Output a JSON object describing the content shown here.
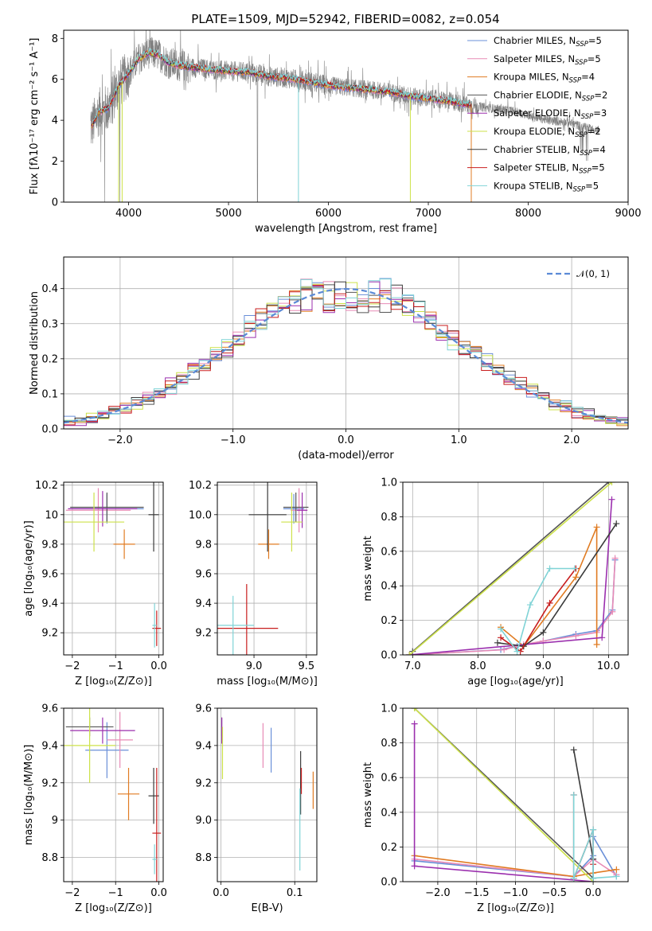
{
  "title": "PLATE=1509, MJD=52942, FIBERID=0082, z=0.054",
  "colors": {
    "chabrier_miles": "#6a8fd8",
    "salpeter_miles": "#e88bb6",
    "kroupa_miles": "#e07b22",
    "chabrier_elodie": "#555555",
    "salpeter_elodie": "#9b2fae",
    "kroupa_elodie": "#cde24a",
    "chabrier_stelib": "#3a3a3a",
    "salpeter_stelib": "#c81e1e",
    "kroupa_stelib": "#7fd3d6",
    "data_gray": "#808080",
    "normal_curve": "#5b8ad6"
  },
  "legend_spectrum": [
    {
      "text": "Chabrier MILES, N",
      "sub": "SSP",
      "tail": "=5",
      "color": "#6a8fd8"
    },
    {
      "text": "Salpeter MILES, N",
      "sub": "SSP",
      "tail": "=5",
      "color": "#e88bb6"
    },
    {
      "text": "Kroupa MILES, N",
      "sub": "SSP",
      "tail": "=4",
      "color": "#e07b22"
    },
    {
      "text": "Chabrier ELODIE, N",
      "sub": "SSP",
      "tail": "=2",
      "color": "#555555"
    },
    {
      "text": "Salpeter ELODIE, N",
      "sub": "SSP",
      "tail": "=3",
      "color": "#9b2fae"
    },
    {
      "text": "Kroupa ELODIE, N",
      "sub": "SSP",
      "tail": "=2",
      "color": "#cde24a"
    },
    {
      "text": "Chabrier STELIB, N",
      "sub": "SSP",
      "tail": "=4",
      "color": "#3a3a3a"
    },
    {
      "text": "Salpeter STELIB, N",
      "sub": "SSP",
      "tail": "=5",
      "color": "#c81e1e"
    },
    {
      "text": "Kroupa STELIB, N",
      "sub": "SSP",
      "tail": "=5",
      "color": "#7fd3d6"
    }
  ],
  "legend_hist": {
    "label": "𝒩(0, 1)"
  },
  "chart_data": [
    {
      "id": "spectrum",
      "type": "line",
      "xlabel": "wavelength [Angstrom, rest frame]",
      "ylabel": "Flux [fλ10⁻¹⁷ erg cm⁻² s⁻¹ A⁻¹]",
      "xlim": [
        3350,
        9000
      ],
      "ylim": [
        0,
        8.4
      ],
      "xticks": [
        4000,
        5000,
        6000,
        7000,
        8000,
        9000
      ],
      "yticks": [
        0,
        2,
        4,
        6,
        8
      ],
      "data_wavelength": [
        3620,
        3700,
        3800,
        3900,
        4000,
        4100,
        4200,
        4300,
        4400,
        4600,
        4800,
        5000,
        5200,
        5400,
        5600,
        5800,
        6000,
        6200,
        6400,
        6600,
        6800,
        7000,
        7200,
        7400,
        7600,
        7800,
        8000,
        8200,
        8400,
        8600,
        8700
      ],
      "model_flux": [
        3.6,
        4.4,
        4.6,
        5.7,
        6.3,
        7.0,
        7.3,
        7.2,
        6.8,
        6.6,
        6.5,
        6.4,
        6.35,
        6.15,
        6.05,
        5.9,
        5.7,
        5.6,
        5.5,
        5.4,
        5.2,
        5.05,
        4.95,
        4.75,
        4.6,
        4.5,
        4.25,
        4.0,
        3.9,
        3.6,
        3.5
      ],
      "model_end": 7430
    },
    {
      "id": "residual_hist",
      "type": "line",
      "xlabel": "(data-model)/error",
      "ylabel": "Normed distribution",
      "xlim": [
        -2.5,
        2.5
      ],
      "ylim": [
        0,
        0.49
      ],
      "xticks": [
        -2,
        -1,
        0,
        1,
        2
      ],
      "yticks": [
        0.0,
        0.1,
        0.2,
        0.3,
        0.4
      ],
      "bin_width": 0.1,
      "series": [
        {
          "name": "𝒩(0, 1)",
          "type": "normal_pdf",
          "mu": 0,
          "sigma": 1
        }
      ]
    },
    {
      "id": "age_vs_Z",
      "type": "scatter",
      "xlabel": "Z [log₁₀(Z/Z⊙)]",
      "ylabel": "age  [log₁₀(age/yr)]",
      "xlim": [
        -2.2,
        0.1
      ],
      "ylim": [
        9.05,
        10.22
      ],
      "xticks": [
        -2,
        -1,
        0
      ],
      "yticks": [
        9.2,
        9.4,
        9.6,
        9.8,
        10.0,
        10.2
      ],
      "points": [
        {
          "x": -1.2,
          "y": 10.04,
          "xerr": 0.85,
          "yerr": 0.1,
          "color": "#6a8fd8"
        },
        {
          "x": -1.4,
          "y": 10.03,
          "xerr": 0.75,
          "yerr": 0.15,
          "color": "#e88bb6"
        },
        {
          "x": -0.8,
          "y": 9.8,
          "xerr": 0.25,
          "yerr": 0.1,
          "color": "#e07b22"
        },
        {
          "x": -1.2,
          "y": 10.05,
          "xerr": 0.85,
          "yerr": 0.1,
          "color": "#555555"
        },
        {
          "x": -1.3,
          "y": 10.04,
          "xerr": 0.8,
          "yerr": 0.12,
          "color": "#9b2fae"
        },
        {
          "x": -1.5,
          "y": 9.95,
          "xerr": 0.7,
          "yerr": 0.2,
          "color": "#cde24a"
        },
        {
          "x": -0.12,
          "y": 10.0,
          "xerr": 0.12,
          "yerr": 0.25,
          "color": "#3a3a3a"
        },
        {
          "x": -0.05,
          "y": 9.23,
          "xerr": 0.1,
          "yerr": 0.12,
          "color": "#c81e1e"
        },
        {
          "x": -0.1,
          "y": 9.25,
          "xerr": 0.05,
          "yerr": 0.15,
          "color": "#7fd3d6"
        }
      ]
    },
    {
      "id": "age_vs_mass",
      "type": "scatter",
      "xlabel": "mass [log₁₀(M/M⊙)]",
      "ylabel": "",
      "xlim": [
        8.65,
        9.6
      ],
      "ylim": [
        9.05,
        10.22
      ],
      "xticks": [
        9.0,
        9.5
      ],
      "yticks": [
        9.2,
        9.4,
        9.6,
        9.8,
        10.0,
        10.2
      ],
      "points": [
        {
          "x": 9.38,
          "y": 10.04,
          "xerr": 0.1,
          "yerr": 0.1,
          "color": "#6a8fd8"
        },
        {
          "x": 9.43,
          "y": 10.03,
          "xerr": 0.08,
          "yerr": 0.15,
          "color": "#e88bb6"
        },
        {
          "x": 9.14,
          "y": 9.8,
          "xerr": 0.1,
          "yerr": 0.1,
          "color": "#e07b22"
        },
        {
          "x": 9.4,
          "y": 10.05,
          "xerr": 0.12,
          "yerr": 0.1,
          "color": "#555555"
        },
        {
          "x": 9.46,
          "y": 10.03,
          "xerr": 0.05,
          "yerr": 0.12,
          "color": "#9b2fae"
        },
        {
          "x": 9.36,
          "y": 9.95,
          "xerr": 0.1,
          "yerr": 0.2,
          "color": "#cde24a"
        },
        {
          "x": 9.13,
          "y": 10.0,
          "xerr": 0.18,
          "yerr": 0.25,
          "color": "#3a3a3a"
        },
        {
          "x": 8.93,
          "y": 9.23,
          "xerr": 0.3,
          "yerr": 0.3,
          "color": "#c81e1e"
        },
        {
          "x": 8.8,
          "y": 9.25,
          "xerr": 0.2,
          "yerr": 0.2,
          "color": "#7fd3d6"
        }
      ]
    },
    {
      "id": "massweight_vs_age",
      "type": "line",
      "xlabel": "age  [log₁₀(age/yr)]",
      "ylabel": "mass weight",
      "xlim": [
        6.85,
        10.3
      ],
      "ylim": [
        0,
        1.0
      ],
      "xticks": [
        7,
        8,
        9,
        10
      ],
      "yticks": [
        0.0,
        0.2,
        0.4,
        0.6,
        0.8,
        1.0
      ],
      "series": [
        {
          "name": "Chabrier MILES",
          "color": "#6a8fd8",
          "x": [
            6.95,
            8.35,
            8.6,
            9.0,
            9.5,
            9.82,
            10.06,
            10.1
          ],
          "y": [
            0.0,
            0.03,
            0.05,
            0.08,
            0.12,
            0.14,
            0.26,
            0.55
          ]
        },
        {
          "name": "Salpeter MILES",
          "color": "#e88bb6",
          "x": [
            6.95,
            8.4,
            8.7,
            9.0,
            9.5,
            9.82,
            10.06,
            10.1
          ],
          "y": [
            0.0,
            0.03,
            0.06,
            0.08,
            0.11,
            0.13,
            0.25,
            0.56
          ]
        },
        {
          "name": "Kroupa MILES",
          "color": "#e07b22",
          "x": [
            8.35,
            8.7,
            9.5,
            9.82,
            9.82
          ],
          "y": [
            0.16,
            0.05,
            0.45,
            0.74,
            0.06
          ]
        },
        {
          "name": "Chabrier ELODIE",
          "color": "#555555",
          "x": [
            7.0,
            10.0
          ],
          "y": [
            0.02,
            1.0
          ]
        },
        {
          "name": "Salpeter ELODIE",
          "color": "#9b2fae",
          "x": [
            6.95,
            9.9,
            10.05
          ],
          "y": [
            0.0,
            0.1,
            0.9
          ]
        },
        {
          "name": "Kroupa ELODIE",
          "color": "#cde24a",
          "x": [
            6.95,
            10.05
          ],
          "y": [
            0.0,
            1.0
          ]
        },
        {
          "name": "Chabrier STELIB",
          "color": "#3a3a3a",
          "x": [
            8.3,
            8.7,
            9.0,
            10.12
          ],
          "y": [
            0.07,
            0.05,
            0.13,
            0.76
          ]
        },
        {
          "name": "Salpeter STELIB",
          "color": "#c81e1e",
          "x": [
            8.35,
            8.65,
            9.1,
            9.5
          ],
          "y": [
            0.1,
            0.02,
            0.3,
            0.5
          ]
        },
        {
          "name": "Kroupa STELIB",
          "color": "#7fd3d6",
          "x": [
            8.35,
            8.6,
            8.8,
            9.1,
            9.48
          ],
          "y": [
            0.15,
            0.02,
            0.29,
            0.5,
            0.5
          ]
        }
      ]
    },
    {
      "id": "mass_vs_Z",
      "type": "scatter",
      "xlabel": "Z [log₁₀(Z/Z⊙)]",
      "ylabel": "mass [log₁₀(M/M⊙)]",
      "xlim": [
        -2.2,
        0.1
      ],
      "ylim": [
        8.67,
        9.6
      ],
      "xticks": [
        -2,
        -1,
        0
      ],
      "yticks": [
        8.8,
        9.0,
        9.2,
        9.4,
        9.6
      ],
      "points": [
        {
          "x": -1.2,
          "y": 9.375,
          "xerr": 0.5,
          "yerr": 0.15,
          "color": "#6a8fd8"
        },
        {
          "x": -0.9,
          "y": 9.43,
          "xerr": 0.3,
          "yerr": 0.15,
          "color": "#e88bb6"
        },
        {
          "x": -0.7,
          "y": 9.14,
          "xerr": 0.25,
          "yerr": 0.14,
          "color": "#e07b22"
        },
        {
          "x": -1.6,
          "y": 9.5,
          "xerr": 0.55,
          "yerr": 0.05,
          "color": "#555555"
        },
        {
          "x": -1.3,
          "y": 9.48,
          "xerr": 0.75,
          "yerr": 0.07,
          "color": "#9b2fae"
        },
        {
          "x": -1.6,
          "y": 9.4,
          "xerr": 0.6,
          "yerr": 0.2,
          "color": "#cde24a"
        },
        {
          "x": -0.12,
          "y": 9.13,
          "xerr": 0.12,
          "yerr": 0.15,
          "color": "#3a3a3a"
        },
        {
          "x": -0.05,
          "y": 8.93,
          "xerr": 0.1,
          "yerr": 0.35,
          "color": "#c81e1e"
        },
        {
          "x": -0.1,
          "y": 8.79,
          "xerr": 0.05,
          "yerr": 0.08,
          "color": "#7fd3d6"
        }
      ]
    },
    {
      "id": "mass_vs_ebv",
      "type": "scatter",
      "xlabel": "E(B-V)",
      "ylabel": "",
      "xlim": [
        -0.005,
        0.13
      ],
      "ylim": [
        8.67,
        9.6
      ],
      "xticks": [
        0.0,
        0.1
      ],
      "yticks": [
        8.8,
        9.0,
        9.2,
        9.4,
        9.6
      ],
      "points": [
        {
          "x": 0.068,
          "y": 9.375,
          "xerr": 0,
          "yerr": 0.12,
          "color": "#6a8fd8"
        },
        {
          "x": 0.057,
          "y": 9.4,
          "xerr": 0,
          "yerr": 0.12,
          "color": "#e88bb6"
        },
        {
          "x": 0.125,
          "y": 9.16,
          "xerr": 0,
          "yerr": 0.1,
          "color": "#e07b22"
        },
        {
          "x": 0.001,
          "y": 9.5,
          "xerr": 0,
          "yerr": 0.05,
          "color": "#555555"
        },
        {
          "x": 0.001,
          "y": 9.48,
          "xerr": 0,
          "yerr": 0.07,
          "color": "#9b2fae"
        },
        {
          "x": 0.002,
          "y": 9.36,
          "xerr": 0,
          "yerr": 0.14,
          "color": "#cde24a"
        },
        {
          "x": 0.108,
          "y": 9.2,
          "xerr": 0,
          "yerr": 0.17,
          "color": "#3a3a3a"
        },
        {
          "x": 0.109,
          "y": 9.21,
          "xerr": 0,
          "yerr": 0.07,
          "color": "#c81e1e"
        },
        {
          "x": 0.107,
          "y": 8.95,
          "xerr": 0,
          "yerr": 0.22,
          "color": "#7fd3d6"
        }
      ]
    },
    {
      "id": "massweight_vs_Z",
      "type": "line",
      "xlabel": "Z [log₁₀(Z/Z⊙)]",
      "ylabel": "mass weight",
      "xlim": [
        -2.45,
        0.45
      ],
      "ylim": [
        0,
        1.0
      ],
      "xticks": [
        -2.0,
        -1.5,
        -1.0,
        -0.5,
        0.0
      ],
      "yticks": [
        0.0,
        0.2,
        0.4,
        0.6,
        0.8,
        1.0
      ],
      "series": [
        {
          "name": "Chabrier MILES",
          "color": "#6a8fd8",
          "x": [
            -2.3,
            -0.25,
            0.0,
            0.0,
            0.3
          ],
          "y": [
            0.12,
            0.03,
            0.15,
            0.26,
            0.03
          ]
        },
        {
          "name": "Salpeter MILES",
          "color": "#e88bb6",
          "x": [
            -2.3,
            -0.25,
            0.0,
            0.3
          ],
          "y": [
            0.13,
            0.03,
            0.13,
            0.04
          ]
        },
        {
          "name": "Kroupa MILES",
          "color": "#e07b22",
          "x": [
            -2.3,
            -0.25,
            0.0,
            0.3
          ],
          "y": [
            0.15,
            0.03,
            0.05,
            0.07
          ]
        },
        {
          "name": "Chabrier ELODIE",
          "color": "#555555",
          "x": [
            -2.3,
            0.0
          ],
          "y": [
            1.0,
            0.02
          ]
        },
        {
          "name": "Salpeter ELODIE",
          "color": "#9b2fae",
          "x": [
            -2.3,
            -2.3,
            0.0
          ],
          "y": [
            0.91,
            0.09,
            0.0
          ]
        },
        {
          "name": "Kroupa ELODIE",
          "color": "#cde24a",
          "x": [
            -2.3,
            0.0
          ],
          "y": [
            1.0,
            0.0
          ]
        },
        {
          "name": "Chabrier STELIB",
          "color": "#3a3a3a",
          "x": [
            -0.25,
            0.0,
            0.0
          ],
          "y": [
            0.76,
            0.13,
            0.02
          ]
        },
        {
          "name": "Salpeter STELIB",
          "color": "#c81e1e",
          "x": [
            -0.25,
            -0.25,
            0.0,
            0.0
          ],
          "y": [
            0.5,
            0.02,
            0.3,
            0.1
          ]
        },
        {
          "name": "Kroupa STELIB",
          "color": "#7fd3d6",
          "x": [
            -0.25,
            -0.25,
            0.0,
            0.0,
            0.3
          ],
          "y": [
            0.5,
            0.02,
            0.3,
            0.02,
            0.03
          ]
        }
      ]
    }
  ]
}
